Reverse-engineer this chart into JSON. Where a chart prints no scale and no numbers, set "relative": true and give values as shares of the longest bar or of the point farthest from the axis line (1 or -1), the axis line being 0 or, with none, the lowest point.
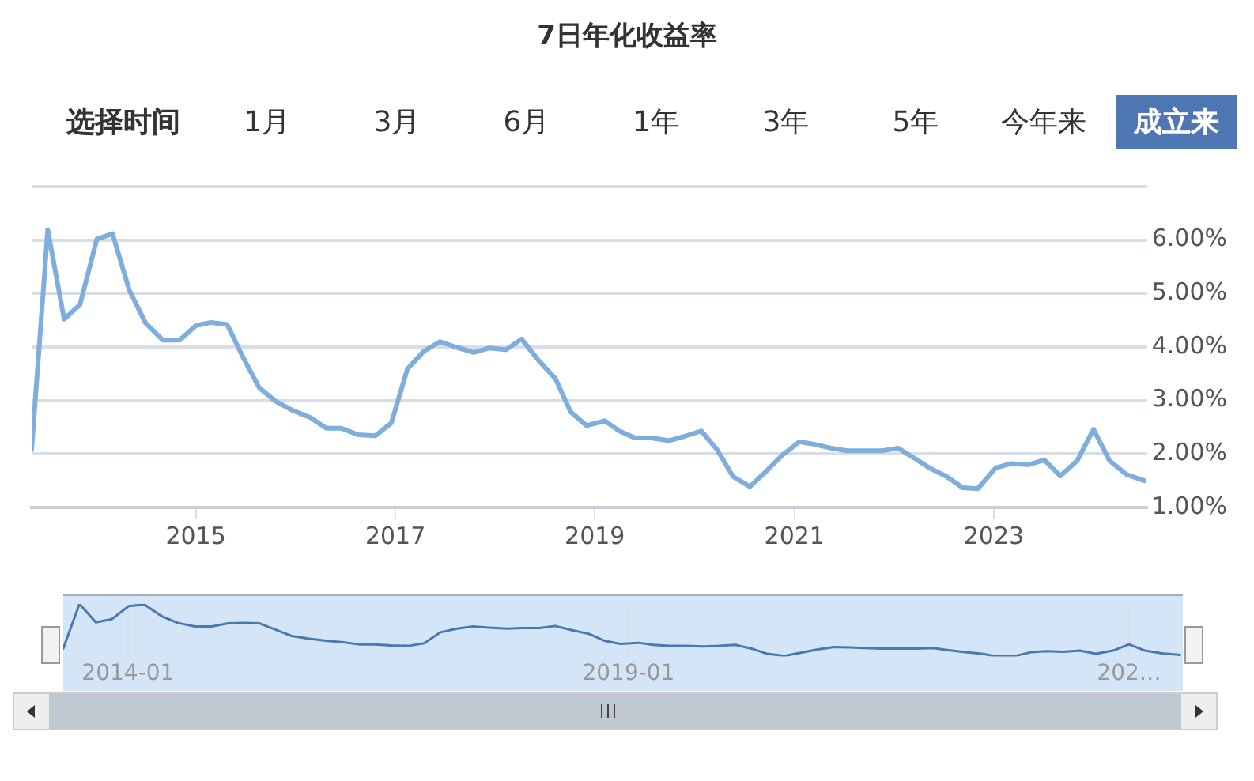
{
  "chart_data": [
    {
      "type": "line",
      "title": "7日年化收益率",
      "annotations": [
        "选择时间",
        "1月",
        "3月",
        "6月",
        "1年",
        "3年",
        "5年",
        "今年来",
        "成立来"
      ],
      "x": [
        "2013-05-10",
        "2013-07-08",
        "2013-09-06",
        "2013-11-03",
        "2014-01-04",
        "2014-03-02",
        "2014-05-03",
        "2014-07-01",
        "2014-09-02",
        "2014-11-03",
        "2015-01-01",
        "2015-02-25",
        "2015-04-26",
        "2015-06-24",
        "2015-08-21",
        "2015-10-19",
        "2015-12-24",
        "2016-02-25",
        "2016-04-23",
        "2016-06-17",
        "2016-08-18",
        "2016-10-19",
        "2016-12-17",
        "2017-02-14",
        "2017-04-15",
        "2017-06-13",
        "2017-08-10",
        "2017-10-15",
        "2017-12-09",
        "2018-02-10",
        "2018-04-08",
        "2018-06-09",
        "2018-08-10",
        "2018-10-04",
        "2018-12-02",
        "2019-02-07",
        "2019-04-01",
        "2019-05-28",
        "2019-07-26",
        "2019-10-01",
        "2019-11-25",
        "2020-01-26",
        "2020-03-24",
        "2020-05-21",
        "2020-07-22",
        "2020-09-20",
        "2020-11-18",
        "2021-01-19",
        "2021-03-16",
        "2021-05-14",
        "2021-07-12",
        "2021-09-16",
        "2021-11-18",
        "2022-01-15",
        "2022-03-13",
        "2022-05-14",
        "2022-07-12",
        "2022-09-09",
        "2022-11-03",
        "2023-01-08",
        "2023-03-05",
        "2023-05-07",
        "2023-07-05",
        "2023-09-02",
        "2023-11-03",
        "2024-01-01",
        "2024-02-28",
        "2024-04-30",
        "2024-07-05"
      ],
      "series": [
        {
          "color": "#7eaedc",
          "values": [
            2.08,
            6.19,
            4.52,
            4.79,
            6.02,
            6.12,
            5.06,
            4.45,
            4.13,
            4.13,
            4.4,
            4.46,
            4.42,
            3.8,
            3.24,
            2.99,
            2.81,
            2.68,
            2.48,
            2.48,
            2.36,
            2.34,
            2.58,
            3.59,
            3.92,
            4.1,
            4.0,
            3.9,
            3.98,
            3.95,
            4.15,
            3.75,
            3.41,
            2.79,
            2.53,
            2.62,
            2.43,
            2.3,
            2.3,
            2.25,
            2.33,
            2.43,
            2.08,
            1.58,
            1.39,
            1.68,
            1.98,
            2.23,
            2.18,
            2.11,
            2.06,
            2.06,
            2.06,
            2.11,
            1.93,
            1.73,
            1.58,
            1.37,
            1.35,
            1.74,
            1.82,
            1.8,
            1.89,
            1.59,
            1.88,
            2.46,
            1.88,
            1.62,
            1.5
          ]
        }
      ],
      "xlim": [
        "2013-05-10",
        "2024-07-15"
      ],
      "xticks": [
        "2015",
        "2017",
        "2019",
        "2021",
        "2023"
      ],
      "ylim": [
        1,
        7
      ],
      "yticks": [
        {
          "value": 1,
          "label": "1.00%"
        },
        {
          "value": 2,
          "label": "2.00%"
        },
        {
          "value": 3,
          "label": "3.00%"
        },
        {
          "value": 4,
          "label": "4.00%"
        },
        {
          "value": 5,
          "label": "5.00%"
        },
        {
          "value": 6,
          "label": "6.00%"
        },
        {
          "value": 7,
          "label": null
        }
      ],
      "grid": "y"
    },
    {
      "type": "line",
      "relative": true,
      "x": [
        "2013-05-10",
        "2013-07-08",
        "2013-09-06",
        "2013-11-03",
        "2014-01-04",
        "2014-03-02",
        "2014-05-03",
        "2014-07-01",
        "2014-09-02",
        "2014-11-03",
        "2015-01-01",
        "2015-02-25",
        "2015-04-26",
        "2015-06-24",
        "2015-08-21",
        "2015-10-19",
        "2015-12-24",
        "2016-02-25",
        "2016-04-23",
        "2016-06-17",
        "2016-08-18",
        "2016-10-19",
        "2016-12-17",
        "2017-02-14",
        "2017-04-15",
        "2017-06-13",
        "2017-08-10",
        "2017-10-15",
        "2017-12-09",
        "2018-02-10",
        "2018-04-08",
        "2018-06-09",
        "2018-08-10",
        "2018-10-04",
        "2018-12-02",
        "2019-02-07",
        "2019-04-01",
        "2019-05-28",
        "2019-07-26",
        "2019-10-01",
        "2019-11-25",
        "2020-01-26",
        "2020-03-24",
        "2020-05-21",
        "2020-07-22",
        "2020-09-20",
        "2020-11-18",
        "2021-01-19",
        "2021-03-16",
        "2021-05-14",
        "2021-07-12",
        "2021-09-16",
        "2021-11-18",
        "2022-01-15",
        "2022-03-13",
        "2022-05-14",
        "2022-07-12",
        "2022-09-09",
        "2022-11-03",
        "2023-01-08",
        "2023-03-05",
        "2023-05-07",
        "2023-07-05",
        "2023-09-02",
        "2023-11-03",
        "2024-01-01",
        "2024-02-28",
        "2024-04-30",
        "2024-07-05"
      ],
      "series": [
        {
          "color": "#4a78b0",
          "values": [
            0.15,
            1,
            0.65,
            0.71,
            0.96,
            0.99,
            0.77,
            0.64,
            0.57,
            0.57,
            0.63,
            0.64,
            0.63,
            0.51,
            0.39,
            0.34,
            0.3,
            0.27,
            0.23,
            0.23,
            0.21,
            0.2,
            0.25,
            0.46,
            0.53,
            0.57,
            0.55,
            0.53,
            0.54,
            0.54,
            0.58,
            0.5,
            0.43,
            0.3,
            0.24,
            0.26,
            0.22,
            0.2,
            0.2,
            0.19,
            0.2,
            0.22,
            0.15,
            0.05,
            0.01,
            0.07,
            0.13,
            0.18,
            0.17,
            0.16,
            0.15,
            0.15,
            0.15,
            0.16,
            0.12,
            0.08,
            0.05,
            0,
            0,
            0.08,
            0.1,
            0.09,
            0.11,
            0.05,
            0.11,
            0.23,
            0.11,
            0.06,
            0.03
          ]
        }
      ],
      "xlim": [
        "2013-05-10",
        "2024-07-15"
      ],
      "xticks": [
        "2014-01",
        "2019-01",
        {
          "value": "2024-01",
          "label": "202…"
        }
      ],
      "grid": "x"
    }
  ]
}
